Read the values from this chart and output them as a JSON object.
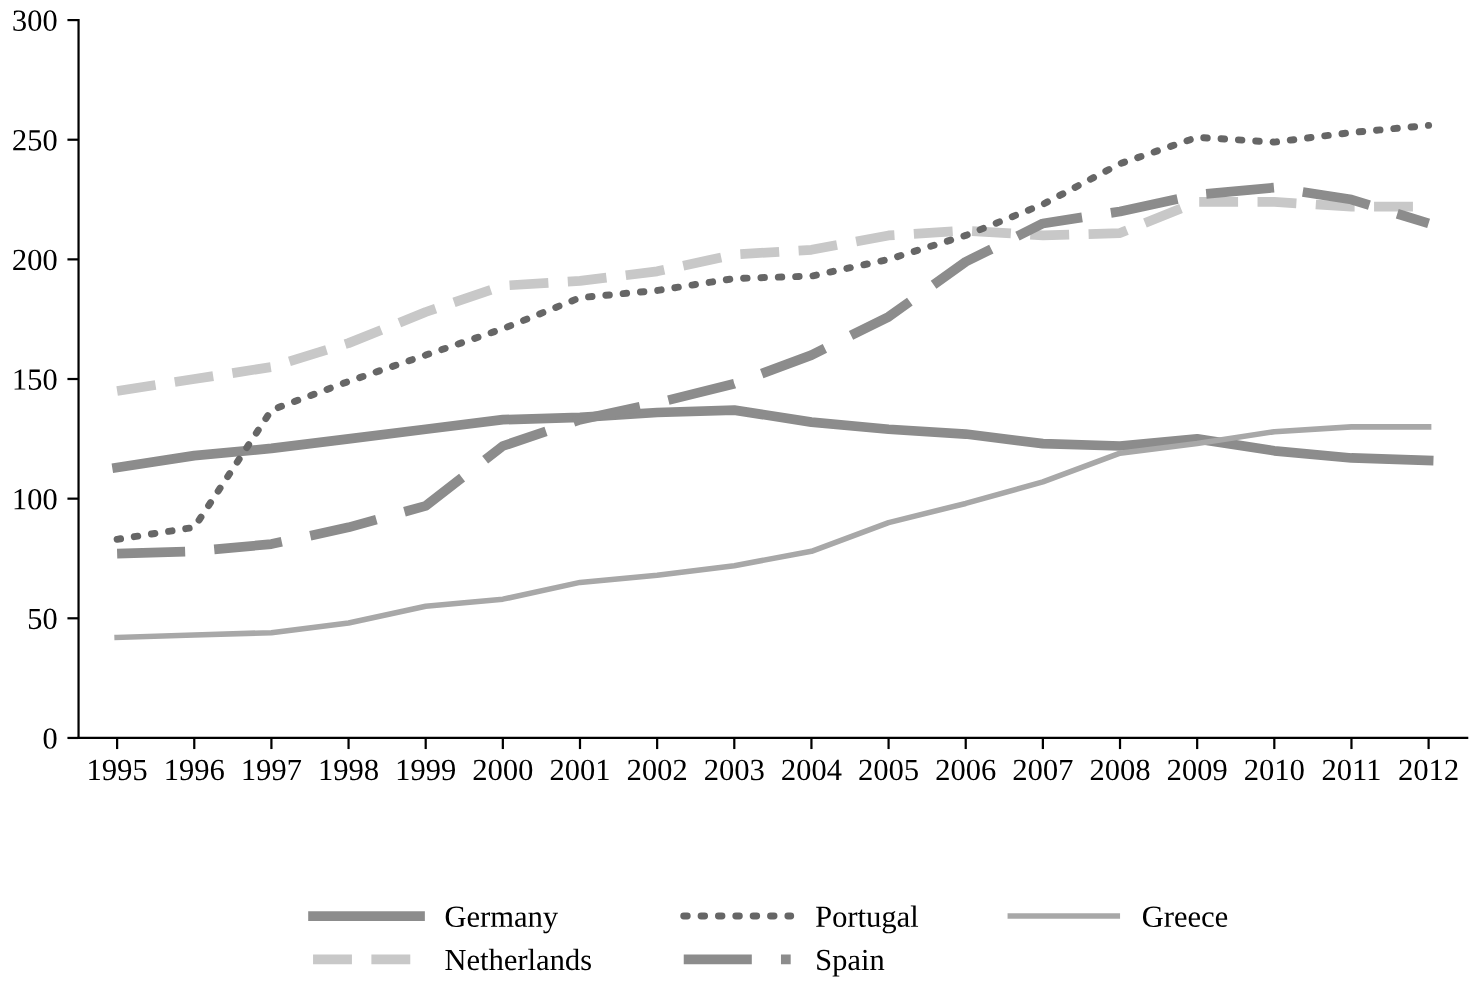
{
  "chart_data": {
    "type": "line",
    "categories": [
      "1995",
      "1996",
      "1997",
      "1998",
      "1999",
      "2000",
      "2001",
      "2002",
      "2003",
      "2004",
      "2005",
      "2006",
      "2007",
      "2008",
      "2009",
      "2010",
      "2011",
      "2012"
    ],
    "series": [
      {
        "name": "Germany",
        "color": "#8c8c8c",
        "line_style": "solid",
        "values": [
          113,
          118,
          121,
          125,
          129,
          133,
          134,
          136,
          137,
          132,
          129,
          127,
          123,
          122,
          125,
          120,
          117,
          116
        ]
      },
      {
        "name": "Netherlands",
        "color": "#c8c8c8",
        "line_style": "dashed",
        "values": [
          145,
          150,
          155,
          165,
          178,
          189,
          191,
          195,
          202,
          204,
          210,
          212,
          210,
          211,
          224,
          224,
          222,
          222
        ]
      },
      {
        "name": "Portugal",
        "color": "#666666",
        "line_style": "dotted",
        "values": [
          83,
          88,
          137,
          149,
          160,
          171,
          184,
          187,
          192,
          193,
          200,
          210,
          223,
          240,
          251,
          249,
          253,
          256
        ]
      },
      {
        "name": "Spain",
        "color": "#8c8c8c",
        "line_style": "dashed",
        "values": [
          77,
          78,
          81,
          88,
          97,
          122,
          133,
          140,
          148,
          160,
          176,
          199,
          215,
          220,
          227,
          230,
          225,
          215
        ]
      },
      {
        "name": "Greece",
        "color": "#a8a8a8",
        "line_style": "solid",
        "values": [
          42,
          43,
          44,
          48,
          55,
          58,
          65,
          68,
          72,
          78,
          90,
          98,
          107,
          119,
          123,
          128,
          130,
          130
        ]
      }
    ],
    "ylim": [
      0,
      300
    ],
    "yticks": [
      0,
      50,
      100,
      150,
      200,
      250,
      300
    ],
    "grid": false,
    "legend": "bottom",
    "marker": "none"
  }
}
